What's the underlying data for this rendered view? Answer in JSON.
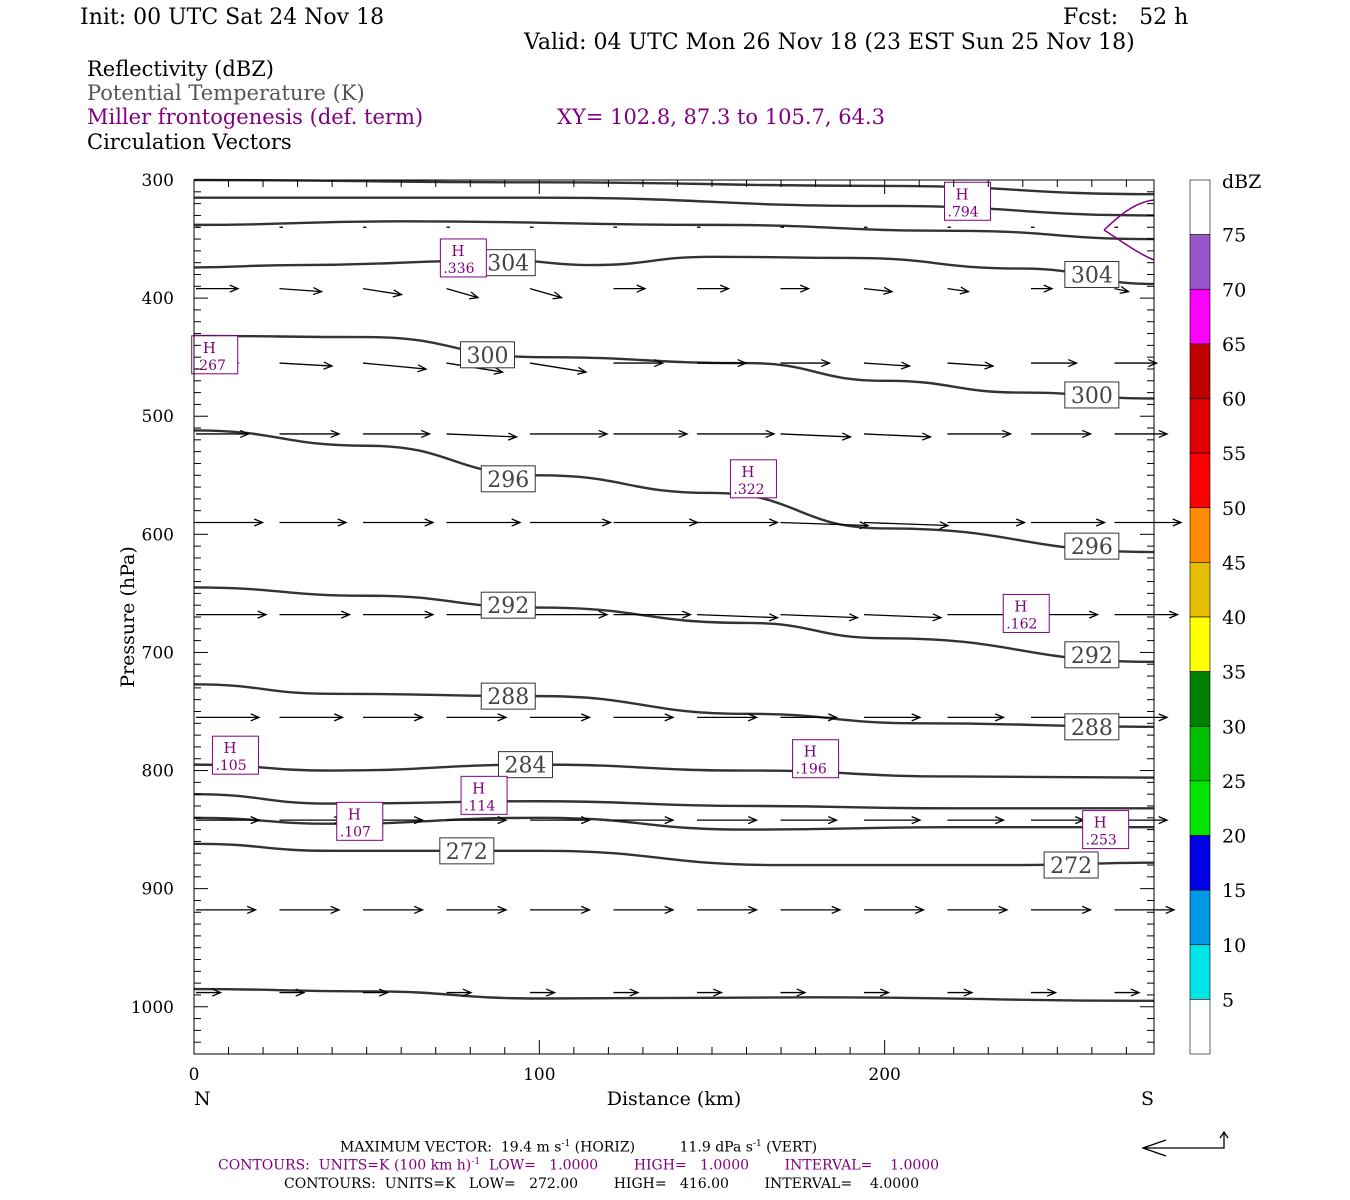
{
  "header": {
    "init": "Init: 00 UTC Sat 24 Nov 18",
    "fcst": "Fcst:   52 h",
    "valid": "Valid: 04 UTC Mon 26 Nov 18 (23 EST Sun 25 Nov 18)"
  },
  "legend": {
    "reflectivity": "Reflectivity (dBZ)",
    "theta": "Potential Temperature (K)",
    "miller": "Miller frontogenesis (def. term)",
    "xy": "XY= 102.8, 87.3 to 105.7, 64.3",
    "vectors": "Circulation Vectors"
  },
  "footer": {
    "max_vector_a": "MAXIMUM VECTOR:  19.4 m s",
    "max_vector_b": " (HORIZ)",
    "max_vector_c": "11.9 dPa s",
    "max_vector_d": " (VERT)",
    "exp_neg1": "-1",
    "contours_front_a": "CONTOURS:  UNITS=K (100 km h)",
    "contours_front_b": "  LOW=   1.0000",
    "contours_front_high": "HIGH=   1.0000",
    "contours_front_int": "INTERVAL=    1.0000",
    "contours_theta_a": "CONTOURS:  UNITS=K   LOW=   272.00",
    "contours_theta_high": "HIGH=   416.00",
    "contours_theta_int": "INTERVAL=    4.0000"
  },
  "colors": {
    "purple": "#800080",
    "contour": "#333333",
    "frame": "#000000"
  },
  "chart_data": {
    "type": "cross-section",
    "xlabel": "Distance (km)",
    "ylabel": "Pressure (hPa)",
    "xlim": [
      0,
      278
    ],
    "ylim": [
      1040,
      300
    ],
    "x_ticks": [
      "0",
      "100",
      "200"
    ],
    "x_tick_values": [
      0,
      100,
      200
    ],
    "y_ticks": [
      "300",
      "400",
      "500",
      "600",
      "700",
      "800",
      "900",
      "1000"
    ],
    "y_tick_values": [
      300,
      400,
      500,
      600,
      700,
      800,
      900,
      1000
    ],
    "endpoint_left": "N",
    "endpoint_right": "S",
    "colorbar": {
      "label": "dBZ",
      "levels": [
        "5",
        "10",
        "15",
        "20",
        "25",
        "30",
        "35",
        "40",
        "45",
        "50",
        "55",
        "60",
        "65",
        "70",
        "75"
      ],
      "colors": [
        "#ffffff",
        "#00e6e6",
        "#0099e6",
        "#0000e6",
        "#00e600",
        "#00c000",
        "#008000",
        "#ffff00",
        "#e6c000",
        "#ff8c00",
        "#ff0000",
        "#e00000",
        "#c00000",
        "#ff00ff",
        "#9955cc",
        "#ffffff"
      ]
    },
    "theta_contours": [
      {
        "label": "",
        "points": [
          [
            0,
            300
          ],
          [
            100,
            302
          ],
          [
            200,
            305
          ],
          [
            278,
            312
          ]
        ]
      },
      {
        "label": "",
        "points": [
          [
            0,
            315
          ],
          [
            100,
            315
          ],
          [
            200,
            322
          ],
          [
            278,
            330
          ]
        ]
      },
      {
        "label": "",
        "points": [
          [
            0,
            338
          ],
          [
            60,
            335
          ],
          [
            150,
            338
          ],
          [
            220,
            343
          ],
          [
            278,
            350
          ]
        ]
      },
      {
        "label": "304",
        "points": [
          [
            0,
            374
          ],
          [
            30,
            372
          ],
          [
            90,
            368
          ],
          [
            115,
            372
          ],
          [
            150,
            365
          ],
          [
            190,
            366
          ],
          [
            240,
            375
          ],
          [
            278,
            388
          ]
        ],
        "label_at": [
          [
            91,
            370
          ],
          [
            260,
            380
          ]
        ]
      },
      {
        "label": "300",
        "points": [
          [
            0,
            432
          ],
          [
            50,
            433
          ],
          [
            100,
            450
          ],
          [
            160,
            455
          ],
          [
            200,
            470
          ],
          [
            240,
            480
          ],
          [
            278,
            485
          ]
        ],
        "label_at": [
          [
            85,
            448
          ],
          [
            260,
            482
          ]
        ]
      },
      {
        "label": "296",
        "points": [
          [
            0,
            512
          ],
          [
            50,
            525
          ],
          [
            100,
            550
          ],
          [
            150,
            565
          ],
          [
            200,
            595
          ],
          [
            278,
            615
          ]
        ],
        "label_at": [
          [
            91,
            553
          ],
          [
            260,
            610
          ]
        ]
      },
      {
        "label": "292",
        "points": [
          [
            0,
            645
          ],
          [
            50,
            652
          ],
          [
            100,
            662
          ],
          [
            160,
            675
          ],
          [
            200,
            688
          ],
          [
            278,
            708
          ]
        ],
        "label_at": [
          [
            91,
            660
          ],
          [
            260,
            702
          ]
        ]
      },
      {
        "label": "288",
        "points": [
          [
            0,
            727
          ],
          [
            40,
            735
          ],
          [
            100,
            737
          ],
          [
            160,
            752
          ],
          [
            210,
            760
          ],
          [
            278,
            763
          ]
        ],
        "label_at": [
          [
            91,
            737
          ],
          [
            260,
            763
          ]
        ]
      },
      {
        "label": "284",
        "points": [
          [
            0,
            795
          ],
          [
            40,
            800
          ],
          [
            100,
            795
          ],
          [
            160,
            800
          ],
          [
            220,
            805
          ],
          [
            278,
            806
          ]
        ],
        "label_at": [
          [
            96,
            795
          ]
        ]
      },
      {
        "label": "",
        "points": [
          [
            0,
            820
          ],
          [
            40,
            828
          ],
          [
            100,
            826
          ],
          [
            160,
            830
          ],
          [
            220,
            832
          ],
          [
            278,
            832
          ]
        ]
      },
      {
        "label": "",
        "points": [
          [
            0,
            840
          ],
          [
            40,
            845
          ],
          [
            100,
            840
          ],
          [
            160,
            850
          ],
          [
            220,
            848
          ],
          [
            278,
            848
          ]
        ]
      },
      {
        "label": "272",
        "points": [
          [
            0,
            862
          ],
          [
            40,
            868
          ],
          [
            100,
            868
          ],
          [
            170,
            880
          ],
          [
            240,
            880
          ],
          [
            278,
            878
          ]
        ],
        "label_at": [
          [
            79,
            868
          ],
          [
            254,
            880
          ]
        ]
      },
      {
        "label": "",
        "points": [
          [
            0,
            985
          ],
          [
            50,
            987
          ],
          [
            100,
            993
          ],
          [
            180,
            992
          ],
          [
            278,
            995
          ]
        ]
      }
    ],
    "frontogenesis_maxima": [
      {
        "label": "H",
        "value": ".794",
        "x": 224,
        "p": 318
      },
      {
        "label": "H",
        "value": ".336",
        "x": 78,
        "p": 366
      },
      {
        "label": "H",
        "value": ".267",
        "x": 6,
        "p": 448
      },
      {
        "label": "H",
        "value": ".322",
        "x": 162,
        "p": 553
      },
      {
        "label": "H",
        "value": ".162",
        "x": 241,
        "p": 667
      },
      {
        "label": "H",
        "value": ".105",
        "x": 12,
        "p": 787
      },
      {
        "label": "H",
        "value": ".196",
        "x": 180,
        "p": 790
      },
      {
        "label": "H",
        "value": ".114",
        "x": 84,
        "p": 821
      },
      {
        "label": "H",
        "value": ".107",
        "x": 48,
        "p": 843
      },
      {
        "label": "H",
        "value": ".253",
        "x": 264,
        "p": 850
      }
    ],
    "vector_rows": [
      {
        "p": 340,
        "u": [
          1,
          1,
          1,
          1,
          1,
          1,
          1,
          1,
          1,
          1,
          1,
          1
        ],
        "w": [
          0,
          0,
          0,
          0,
          0,
          0,
          0,
          0,
          0,
          0,
          0,
          0
        ]
      },
      {
        "p": 392,
        "u": [
          12,
          12,
          11,
          9,
          9,
          9,
          9,
          8,
          8,
          6,
          6,
          4
        ],
        "w": [
          0,
          1,
          2,
          3,
          3,
          0,
          0,
          0,
          1,
          1,
          0,
          1
        ]
      },
      {
        "p": 455,
        "u": [
          12,
          15,
          18,
          16,
          16,
          14,
          14,
          14,
          13,
          13,
          13,
          12
        ],
        "w": [
          0,
          1,
          2,
          3,
          3,
          0,
          0,
          0,
          1,
          1,
          0,
          0
        ]
      },
      {
        "p": 515,
        "u": [
          15,
          17,
          19,
          20,
          22,
          21,
          22,
          20,
          19,
          18,
          17,
          15
        ],
        "w": [
          0,
          0,
          0,
          1,
          0,
          0,
          0,
          1,
          1,
          0,
          0,
          0
        ]
      },
      {
        "p": 590,
        "u": [
          19,
          19,
          20,
          21,
          23,
          24,
          23,
          25,
          24,
          22,
          21,
          19
        ],
        "w": [
          0,
          0,
          0,
          0,
          0,
          0,
          0,
          1,
          1,
          0,
          0,
          0
        ]
      },
      {
        "p": 668,
        "u": [
          20,
          20,
          20,
          20,
          22,
          22,
          23,
          22,
          22,
          21,
          19,
          18
        ],
        "w": [
          0,
          0,
          0,
          0,
          0,
          0,
          1,
          1,
          1,
          0,
          0,
          0
        ]
      },
      {
        "p": 755,
        "u": [
          18,
          18,
          17,
          17,
          17,
          17,
          17,
          16,
          16,
          16,
          15,
          15
        ],
        "w": [
          0,
          0,
          0,
          0,
          0,
          0,
          0,
          0,
          0,
          0,
          0,
          0
        ]
      },
      {
        "p": 842,
        "u": [
          18,
          18,
          17,
          17,
          17,
          17,
          17,
          16,
          16,
          16,
          15,
          15
        ],
        "w": [
          0,
          0,
          0,
          0,
          0,
          0,
          0,
          0,
          0,
          0,
          0,
          0
        ]
      },
      {
        "p": 918,
        "u": [
          17,
          17,
          17,
          17,
          17,
          17,
          17,
          17,
          17,
          17,
          17,
          17
        ],
        "w": [
          0,
          0,
          0,
          0,
          0,
          0,
          0,
          0,
          0,
          0,
          0,
          0
        ]
      },
      {
        "p": 988,
        "u": [
          7,
          7,
          7,
          7,
          7,
          7,
          7,
          7,
          7,
          7,
          7,
          7
        ],
        "w": [
          0,
          0,
          0,
          0,
          0,
          0,
          0,
          0,
          0,
          0,
          0,
          0
        ]
      }
    ]
  }
}
